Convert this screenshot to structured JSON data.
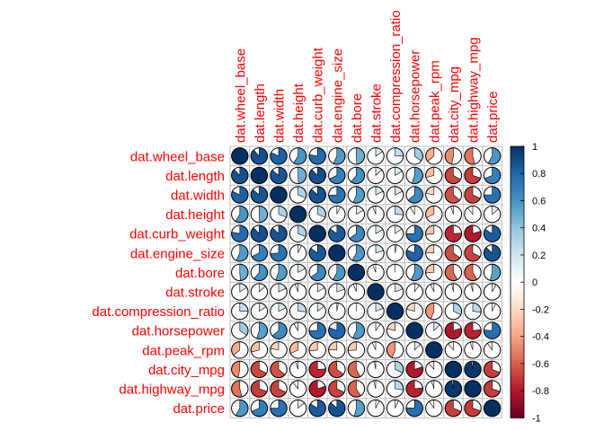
{
  "chart_data": {
    "type": "heatmap",
    "style": "pie",
    "variables": [
      "dat.wheel_base",
      "dat.length",
      "dat.width",
      "dat.height",
      "dat.curb_weight",
      "dat.engine_size",
      "dat.bore",
      "dat.stroke",
      "dat.compression_ratio",
      "dat.horsepower",
      "dat.peak_rpm",
      "dat.city_mpg",
      "dat.highway_mpg",
      "dat.price"
    ],
    "matrix": [
      [
        1.0,
        0.88,
        0.82,
        0.59,
        0.78,
        0.57,
        0.49,
        0.16,
        0.25,
        0.35,
        -0.36,
        -0.47,
        -0.54,
        0.58
      ],
      [
        0.88,
        1.0,
        0.86,
        0.49,
        0.88,
        0.68,
        0.61,
        0.13,
        0.16,
        0.55,
        -0.29,
        -0.67,
        -0.7,
        0.69
      ],
      [
        0.82,
        0.86,
        1.0,
        0.31,
        0.87,
        0.74,
        0.56,
        0.18,
        0.18,
        0.64,
        -0.22,
        -0.64,
        -0.68,
        0.75
      ],
      [
        0.59,
        0.49,
        0.31,
        1.0,
        0.31,
        0.07,
        0.17,
        -0.06,
        0.26,
        -0.09,
        -0.32,
        -0.05,
        -0.11,
        0.14
      ],
      [
        0.78,
        0.88,
        0.87,
        0.31,
        1.0,
        0.85,
        0.65,
        0.17,
        0.15,
        0.75,
        -0.27,
        -0.76,
        -0.8,
        0.84
      ],
      [
        0.57,
        0.68,
        0.74,
        0.07,
        0.85,
        1.0,
        0.58,
        0.2,
        0.03,
        0.81,
        -0.24,
        -0.65,
        -0.68,
        0.87
      ],
      [
        0.49,
        0.61,
        0.56,
        0.17,
        0.65,
        0.58,
        1.0,
        -0.06,
        0.0,
        0.57,
        -0.26,
        -0.58,
        -0.59,
        0.54
      ],
      [
        0.16,
        0.13,
        0.18,
        -0.06,
        0.17,
        0.2,
        -0.06,
        1.0,
        0.19,
        0.1,
        -0.07,
        -0.03,
        -0.04,
        0.08
      ],
      [
        0.25,
        0.16,
        0.18,
        0.26,
        0.15,
        0.03,
        0.0,
        0.19,
        1.0,
        -0.21,
        -0.44,
        0.32,
        0.27,
        0.07
      ],
      [
        0.35,
        0.55,
        0.64,
        -0.09,
        0.75,
        0.81,
        0.57,
        0.1,
        -0.21,
        1.0,
        0.13,
        -0.8,
        -0.77,
        0.76
      ],
      [
        -0.36,
        -0.29,
        -0.22,
        -0.32,
        -0.27,
        -0.24,
        -0.26,
        -0.07,
        -0.44,
        0.13,
        1.0,
        -0.11,
        -0.05,
        -0.1
      ],
      [
        -0.47,
        -0.67,
        -0.64,
        -0.05,
        -0.76,
        -0.65,
        -0.58,
        -0.03,
        0.32,
        -0.8,
        -0.11,
        1.0,
        0.97,
        -0.69
      ],
      [
        -0.54,
        -0.7,
        -0.68,
        -0.11,
        -0.8,
        -0.68,
        -0.59,
        -0.04,
        0.27,
        -0.77,
        -0.05,
        0.97,
        1.0,
        -0.7
      ],
      [
        0.58,
        0.69,
        0.75,
        0.14,
        0.84,
        0.87,
        0.54,
        0.08,
        0.07,
        0.76,
        -0.1,
        -0.69,
        -0.7,
        1.0
      ]
    ],
    "colorbar": {
      "range": [
        -1,
        1
      ],
      "ticks": [
        "1",
        "0.8",
        "0.6",
        "0.4",
        "0.2",
        "0",
        "-0.2",
        "-0.4",
        "-0.6",
        "-0.8",
        "-1"
      ],
      "stops": [
        "#67001F",
        "#B2182B",
        "#D6604D",
        "#F4A582",
        "#FDDBC7",
        "#FFFFFF",
        "#D1E5F0",
        "#92C5DE",
        "#4393C3",
        "#2166AC",
        "#053061"
      ]
    },
    "label_color": "#FF0000",
    "grid_color": "#BEBEBE"
  }
}
